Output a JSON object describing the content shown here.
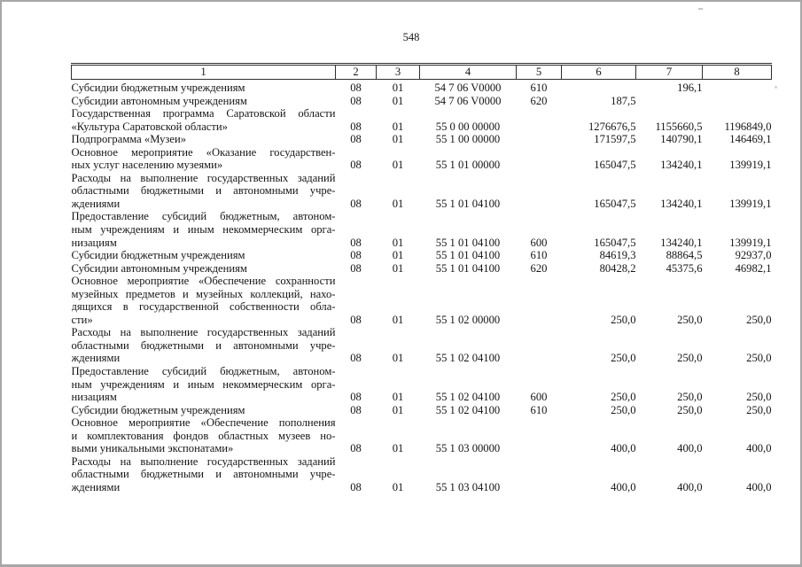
{
  "page": {
    "number": "548"
  },
  "colors": {
    "background": "#ffffff",
    "text": "#151515",
    "table_border": "#2e2e2e",
    "page_edge": "#a7a7a7"
  },
  "table": {
    "column_headers": [
      "1",
      "2",
      "3",
      "4",
      "5",
      "6",
      "7",
      "8"
    ],
    "rows": [
      {
        "c1": [
          "Субсидии бюджетным учреждениям"
        ],
        "c2": "08",
        "c3": "01",
        "c4": "54 7 06 V0000",
        "c5": "610",
        "c6": "",
        "c7": "196,1",
        "c8": ""
      },
      {
        "c1": [
          "Субсидии автономным учреждениям"
        ],
        "c2": "08",
        "c3": "01",
        "c4": "54 7 06 V0000",
        "c5": "620",
        "c6": "187,5",
        "c7": "",
        "c8": ""
      },
      {
        "c1": [
          "Государственная программа Саратовской области",
          "«Культура Саратовской области»"
        ],
        "c2": "08",
        "c3": "01",
        "c4": "55 0 00 00000",
        "c5": "",
        "c6": "1276676,5",
        "c7": "1155660,5",
        "c8": "1196849,0"
      },
      {
        "c1": [
          "Подпрограмма «Музеи»"
        ],
        "c2": "08",
        "c3": "01",
        "c4": "55 1 00 00000",
        "c5": "",
        "c6": "171597,5",
        "c7": "140790,1",
        "c8": "146469,1"
      },
      {
        "c1": [
          "Основное мероприятие «Оказание государствен-",
          "ных услуг населению музеями»"
        ],
        "c2": "08",
        "c3": "01",
        "c4": "55 1 01 00000",
        "c5": "",
        "c6": "165047,5",
        "c7": "134240,1",
        "c8": "139919,1"
      },
      {
        "c1": [
          "Расходы на выполнение государственных заданий",
          "областными бюджетными и автономными учре-",
          "ждениями"
        ],
        "c2": "08",
        "c3": "01",
        "c4": "55 1 01 04100",
        "c5": "",
        "c6": "165047,5",
        "c7": "134240,1",
        "c8": "139919,1"
      },
      {
        "c1": [
          "Предоставление субсидий бюджетным, автоном-",
          "ным учреждениям и иным некоммерческим орга-",
          "низациям"
        ],
        "c2": "08",
        "c3": "01",
        "c4": "55 1 01 04100",
        "c5": "600",
        "c6": "165047,5",
        "c7": "134240,1",
        "c8": "139919,1"
      },
      {
        "c1": [
          "Субсидии бюджетным учреждениям"
        ],
        "c2": "08",
        "c3": "01",
        "c4": "55 1 01 04100",
        "c5": "610",
        "c6": "84619,3",
        "c7": "88864,5",
        "c8": "92937,0"
      },
      {
        "c1": [
          "Субсидии автономным учреждениям"
        ],
        "c2": "08",
        "c3": "01",
        "c4": "55 1 01 04100",
        "c5": "620",
        "c6": "80428,2",
        "c7": "45375,6",
        "c8": "46982,1"
      },
      {
        "c1": [
          "Основное мероприятие «Обеспечение сохранности",
          "музейных предметов и музейных коллекций, нахо-",
          "дящихся в государственной собственности обла-",
          "сти»"
        ],
        "c2": "08",
        "c3": "01",
        "c4": "55 1 02 00000",
        "c5": "",
        "c6": "250,0",
        "c7": "250,0",
        "c8": "250,0"
      },
      {
        "c1": [
          "Расходы на выполнение государственных заданий",
          "областными бюджетными и автономными учре-",
          "ждениями"
        ],
        "c2": "08",
        "c3": "01",
        "c4": "55 1 02 04100",
        "c5": "",
        "c6": "250,0",
        "c7": "250,0",
        "c8": "250,0"
      },
      {
        "c1": [
          "Предоставление субсидий бюджетным, автоном-",
          "ным учреждениям и иным некоммерческим орга-",
          "низациям"
        ],
        "c2": "08",
        "c3": "01",
        "c4": "55 1 02 04100",
        "c5": "600",
        "c6": "250,0",
        "c7": "250,0",
        "c8": "250,0"
      },
      {
        "c1": [
          "Субсидии бюджетным учреждениям"
        ],
        "c2": "08",
        "c3": "01",
        "c4": "55 1 02 04100",
        "c5": "610",
        "c6": "250,0",
        "c7": "250,0",
        "c8": "250,0"
      },
      {
        "c1": [
          "Основное мероприятие «Обеспечение пополнения",
          "и комплектования фондов областных музеев но-",
          "выми уникальными экспонатами»"
        ],
        "c2": "08",
        "c3": "01",
        "c4": "55 1 03 00000",
        "c5": "",
        "c6": "400,0",
        "c7": "400,0",
        "c8": "400,0"
      },
      {
        "c1": [
          "Расходы на выполнение государственных заданий",
          "областными бюджетными и автономными учре-",
          "ждениями"
        ],
        "c2": "08",
        "c3": "01",
        "c4": "55 1 03 04100",
        "c5": "",
        "c6": "400,0",
        "c7": "400,0",
        "c8": "400,0"
      }
    ]
  }
}
